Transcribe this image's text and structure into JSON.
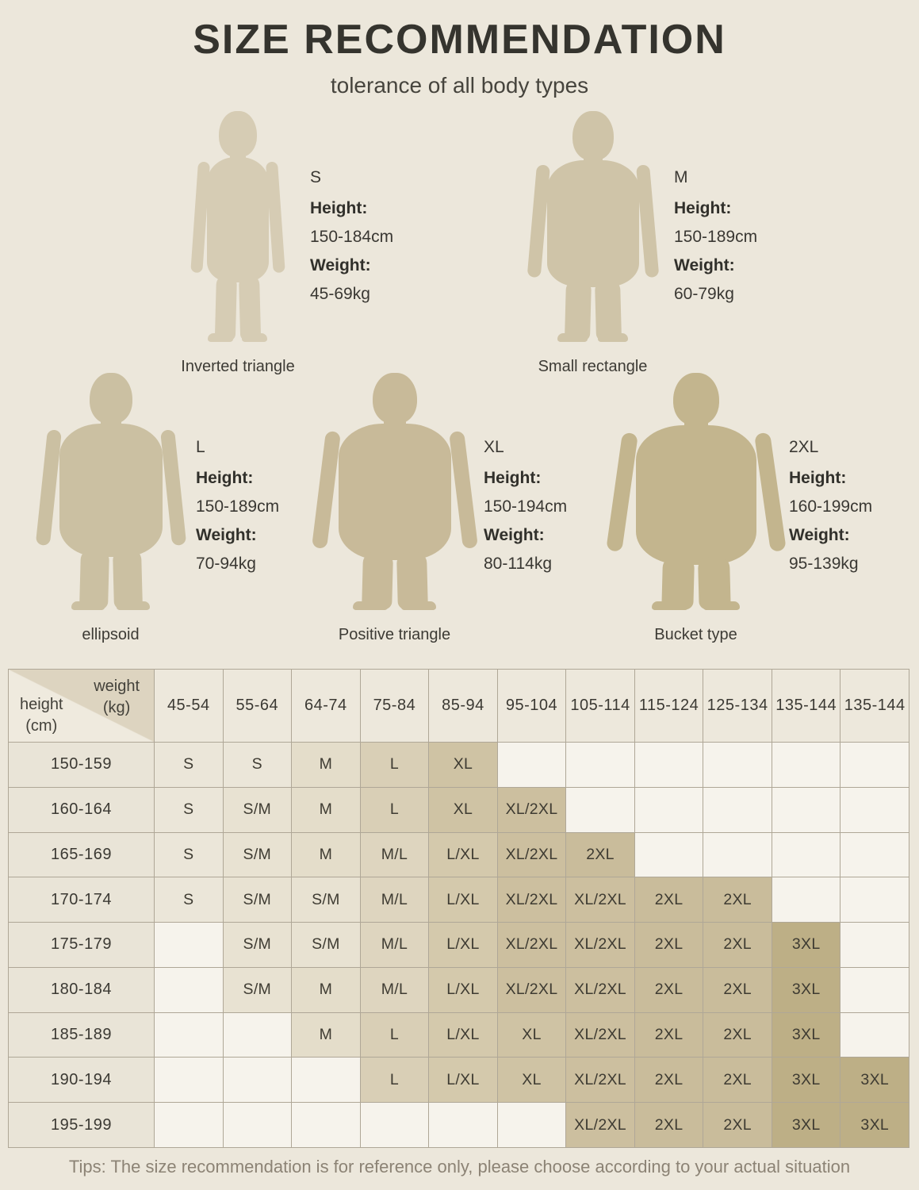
{
  "page": {
    "title": "SIZE RECOMMENDATION",
    "subtitle": "tolerance of all body types",
    "tips": "Tips: The size recommendation is for reference only, please choose according to your actual situation"
  },
  "figures": [
    {
      "size": "S",
      "height_label": "Height:",
      "height": "150-184cm",
      "weight_label": "Weight:",
      "weight": "45-69kg",
      "body_type": "Inverted triangle",
      "color": "#d6ccb4"
    },
    {
      "size": "M",
      "height_label": "Height:",
      "height": "150-189cm",
      "weight_label": "Weight:",
      "weight": "60-79kg",
      "body_type": "Small rectangle",
      "color": "#cfc4a8"
    },
    {
      "size": "L",
      "height_label": "Height:",
      "height": "150-189cm",
      "weight_label": "Weight:",
      "weight": "70-94kg",
      "body_type": "ellipsoid",
      "color": "#cbc0a2"
    },
    {
      "size": "XL",
      "height_label": "Height:",
      "height": "150-194cm",
      "weight_label": "Weight:",
      "weight": "80-114kg",
      "body_type": "Positive triangle",
      "color": "#c8ba99"
    },
    {
      "size": "2XL",
      "height_label": "Height:",
      "height": "160-199cm",
      "weight_label": "Weight:",
      "weight": "95-139kg",
      "body_type": "Bucket type",
      "color": "#c3b58e"
    }
  ],
  "size_table": {
    "corner": {
      "weight_line1": "weight",
      "weight_line2": "(kg)",
      "height_line1": "height",
      "height_line2": "(cm)"
    },
    "weight_columns": [
      "45-54",
      "55-64",
      "64-74",
      "75-84",
      "85-94",
      "95-104",
      "105-114",
      "115-124",
      "125-134",
      "135-144",
      "135-144"
    ],
    "rows": [
      {
        "height": "150-159",
        "cells": [
          "S",
          "S",
          "M",
          "L",
          "XL",
          "",
          "",
          "",
          "",
          "",
          ""
        ]
      },
      {
        "height": "160-164",
        "cells": [
          "S",
          "S/M",
          "M",
          "L",
          "XL",
          "XL/2XL",
          "",
          "",
          "",
          "",
          ""
        ]
      },
      {
        "height": "165-169",
        "cells": [
          "S",
          "S/M",
          "M",
          "M/L",
          "L/XL",
          "XL/2XL",
          "2XL",
          "",
          "",
          "",
          ""
        ]
      },
      {
        "height": "170-174",
        "cells": [
          "S",
          "S/M",
          "S/M",
          "M/L",
          "L/XL",
          "XL/2XL",
          "XL/2XL",
          "2XL",
          "2XL",
          "",
          ""
        ]
      },
      {
        "height": "175-179",
        "cells": [
          "",
          "S/M",
          "S/M",
          "M/L",
          "L/XL",
          "XL/2XL",
          "XL/2XL",
          "2XL",
          "2XL",
          "3XL",
          ""
        ]
      },
      {
        "height": "180-184",
        "cells": [
          "",
          "S/M",
          "M",
          "M/L",
          "L/XL",
          "XL/2XL",
          "XL/2XL",
          "2XL",
          "2XL",
          "3XL",
          ""
        ]
      },
      {
        "height": "185-189",
        "cells": [
          "",
          "",
          "M",
          "L",
          "L/XL",
          "XL",
          "XL/2XL",
          "2XL",
          "2XL",
          "3XL",
          ""
        ]
      },
      {
        "height": "190-194",
        "cells": [
          "",
          "",
          "",
          "L",
          "L/XL",
          "XL",
          "XL/2XL",
          "2XL",
          "2XL",
          "3XL",
          "3XL"
        ]
      },
      {
        "height": "195-199",
        "cells": [
          "",
          "",
          "",
          "",
          "",
          "",
          "XL/2XL",
          "2XL",
          "2XL",
          "3XL",
          "3XL"
        ]
      }
    ],
    "cell_colors": {
      "empty": "#f6f3ec",
      "S": "#ebe6d9",
      "S/M": "#e8e2d2",
      "M": "#e4ddca",
      "M/L": "#ded5bf",
      "L": "#d9cfb6",
      "L/XL": "#d4c9ac",
      "XL": "#cfc3a4",
      "XL/2XL": "#ccbf9f",
      "2XL": "#c9bc9b",
      "3XL": "#bdaf86"
    }
  }
}
